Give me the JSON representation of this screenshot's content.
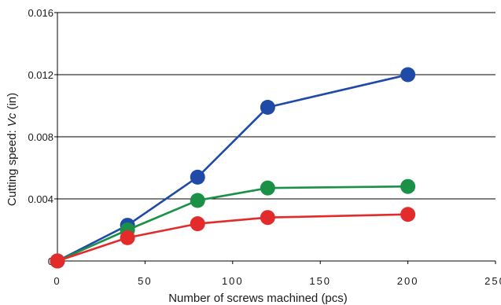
{
  "chart_data": {
    "type": "line",
    "title": "",
    "xlabel": "Number of screws machined (pcs)",
    "ylabel_prefix": "Cutting speed: ",
    "ylabel_italic": "Vc",
    "ylabel_suffix": " (in)",
    "xlim": [
      0,
      250
    ],
    "ylim": [
      0,
      0.016
    ],
    "x_ticks": [
      0,
      50,
      100,
      150,
      200,
      250
    ],
    "x_tick_labels": [
      "0",
      "50",
      "100",
      "150",
      "200",
      "250"
    ],
    "y_ticks": [
      0,
      0.004,
      0.008,
      0.012,
      0.016
    ],
    "y_tick_labels": [
      "0",
      "0.004",
      "0.008",
      "0.012",
      "0.016"
    ],
    "grid": "horizontal",
    "series": [
      {
        "color": "#1f4aa8",
        "x": [
          0,
          40,
          80,
          120,
          200
        ],
        "y": [
          0,
          0.0023,
          0.0054,
          0.0099,
          0.012
        ]
      },
      {
        "color": "#1a9146",
        "x": [
          0,
          40,
          80,
          120,
          200
        ],
        "y": [
          0,
          0.002,
          0.0039,
          0.0047,
          0.0048
        ]
      },
      {
        "color": "#e32b2b",
        "x": [
          0,
          40,
          80,
          120,
          200
        ],
        "y": [
          0,
          0.0015,
          0.0024,
          0.0028,
          0.003
        ]
      }
    ]
  }
}
